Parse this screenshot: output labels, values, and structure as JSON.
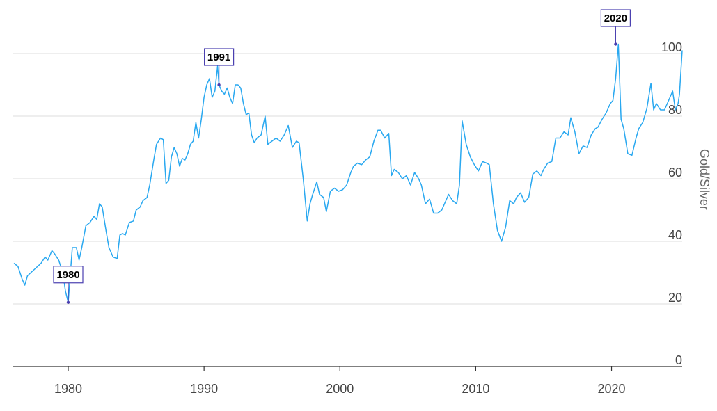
{
  "chart_data": {
    "type": "line",
    "title": "",
    "xlabel": "",
    "ylabel": "Gold/Silver",
    "xlim": [
      1975.9,
      2025.2
    ],
    "ylim": [
      0,
      100
    ],
    "x_ticks": [
      1980,
      1990,
      2000,
      2010,
      2020
    ],
    "x_tick_labels": [
      "1980",
      "1990",
      "2000",
      "2010",
      "2020"
    ],
    "y_ticks": [
      0,
      20,
      40,
      60,
      80,
      100
    ],
    "y_tick_labels": [
      "0",
      "20",
      "40",
      "60",
      "80",
      "100"
    ],
    "grid": "horizontal",
    "series": [
      {
        "name": "",
        "color": "#29a8f0",
        "points": [
          [
            1976.0,
            33
          ],
          [
            1976.3,
            32
          ],
          [
            1976.6,
            28
          ],
          [
            1976.8,
            26
          ],
          [
            1977.0,
            29
          ],
          [
            1977.5,
            31
          ],
          [
            1978.0,
            33
          ],
          [
            1978.3,
            35
          ],
          [
            1978.5,
            34
          ],
          [
            1978.8,
            37
          ],
          [
            1979.0,
            36
          ],
          [
            1979.3,
            34
          ],
          [
            1979.6,
            30
          ],
          [
            1979.8,
            24
          ],
          [
            1980.0,
            20.5
          ],
          [
            1980.3,
            38
          ],
          [
            1980.6,
            38
          ],
          [
            1980.8,
            34
          ],
          [
            1981.0,
            38
          ],
          [
            1981.3,
            45
          ],
          [
            1981.6,
            46
          ],
          [
            1981.9,
            48
          ],
          [
            1982.1,
            47
          ],
          [
            1982.3,
            52
          ],
          [
            1982.5,
            51
          ],
          [
            1982.8,
            43
          ],
          [
            1983.0,
            38
          ],
          [
            1983.3,
            35
          ],
          [
            1983.6,
            34.5
          ],
          [
            1983.8,
            42
          ],
          [
            1984.0,
            42.5
          ],
          [
            1984.2,
            42
          ],
          [
            1984.5,
            46
          ],
          [
            1984.8,
            46.5
          ],
          [
            1985.0,
            50
          ],
          [
            1985.3,
            51
          ],
          [
            1985.5,
            53
          ],
          [
            1985.8,
            54
          ],
          [
            1986.0,
            58
          ],
          [
            1986.3,
            66
          ],
          [
            1986.5,
            71
          ],
          [
            1986.8,
            73
          ],
          [
            1987.0,
            72.5
          ],
          [
            1987.2,
            58.5
          ],
          [
            1987.4,
            59.5
          ],
          [
            1987.6,
            67
          ],
          [
            1987.8,
            70
          ],
          [
            1988.0,
            68
          ],
          [
            1988.2,
            64
          ],
          [
            1988.4,
            66.5
          ],
          [
            1988.6,
            66
          ],
          [
            1988.8,
            68
          ],
          [
            1989.0,
            71
          ],
          [
            1989.2,
            72
          ],
          [
            1989.4,
            78
          ],
          [
            1989.6,
            73
          ],
          [
            1989.8,
            79
          ],
          [
            1990.0,
            86
          ],
          [
            1990.2,
            90
          ],
          [
            1990.4,
            92
          ],
          [
            1990.6,
            86
          ],
          [
            1990.8,
            88
          ],
          [
            1991.0,
            96
          ],
          [
            1991.1,
            90
          ],
          [
            1991.3,
            88
          ],
          [
            1991.5,
            87
          ],
          [
            1991.7,
            89
          ],
          [
            1991.9,
            86
          ],
          [
            1992.1,
            84
          ],
          [
            1992.3,
            90
          ],
          [
            1992.5,
            90
          ],
          [
            1992.7,
            89
          ],
          [
            1992.9,
            84
          ],
          [
            1993.1,
            80.5
          ],
          [
            1993.3,
            81
          ],
          [
            1993.5,
            74
          ],
          [
            1993.7,
            71.5
          ],
          [
            1993.9,
            73
          ],
          [
            1994.2,
            74
          ],
          [
            1994.5,
            80
          ],
          [
            1994.7,
            71
          ],
          [
            1995.0,
            72
          ],
          [
            1995.3,
            73
          ],
          [
            1995.6,
            72
          ],
          [
            1995.9,
            74
          ],
          [
            1996.2,
            77
          ],
          [
            1996.5,
            70
          ],
          [
            1996.8,
            72
          ],
          [
            1997.0,
            71.5
          ],
          [
            1997.3,
            60
          ],
          [
            1997.6,
            46.5
          ],
          [
            1997.8,
            52
          ],
          [
            1998.0,
            55
          ],
          [
            1998.3,
            59
          ],
          [
            1998.5,
            55
          ],
          [
            1998.8,
            54
          ],
          [
            1999.0,
            49.5
          ],
          [
            1999.3,
            56
          ],
          [
            1999.6,
            57
          ],
          [
            1999.9,
            56
          ],
          [
            2000.2,
            56.5
          ],
          [
            2000.5,
            58
          ],
          [
            2000.8,
            62
          ],
          [
            2001.0,
            64
          ],
          [
            2001.3,
            65
          ],
          [
            2001.6,
            64.5
          ],
          [
            2001.9,
            66
          ],
          [
            2002.2,
            67
          ],
          [
            2002.5,
            72
          ],
          [
            2002.8,
            75.5
          ],
          [
            2003.0,
            75.5
          ],
          [
            2003.3,
            73
          ],
          [
            2003.6,
            74.5
          ],
          [
            2003.8,
            61
          ],
          [
            2004.0,
            63
          ],
          [
            2004.3,
            62
          ],
          [
            2004.6,
            60
          ],
          [
            2004.9,
            61
          ],
          [
            2005.2,
            58
          ],
          [
            2005.5,
            62
          ],
          [
            2005.8,
            60
          ],
          [
            2006.0,
            58
          ],
          [
            2006.3,
            52
          ],
          [
            2006.6,
            53.5
          ],
          [
            2006.9,
            49
          ],
          [
            2007.2,
            49
          ],
          [
            2007.5,
            50
          ],
          [
            2007.8,
            53
          ],
          [
            2008.0,
            55
          ],
          [
            2008.3,
            53
          ],
          [
            2008.6,
            52
          ],
          [
            2008.8,
            58
          ],
          [
            2009.0,
            78.5
          ],
          [
            2009.3,
            71
          ],
          [
            2009.6,
            67
          ],
          [
            2009.9,
            64.5
          ],
          [
            2010.2,
            62.5
          ],
          [
            2010.5,
            65.5
          ],
          [
            2010.8,
            65
          ],
          [
            2011.0,
            64.5
          ],
          [
            2011.3,
            52
          ],
          [
            2011.6,
            43.5
          ],
          [
            2011.9,
            40
          ],
          [
            2012.2,
            44.5
          ],
          [
            2012.5,
            53
          ],
          [
            2012.8,
            52
          ],
          [
            2013.0,
            54
          ],
          [
            2013.3,
            55.5
          ],
          [
            2013.6,
            52.5
          ],
          [
            2013.9,
            54
          ],
          [
            2014.2,
            61.5
          ],
          [
            2014.5,
            62.5
          ],
          [
            2014.8,
            61
          ],
          [
            2015.0,
            63
          ],
          [
            2015.3,
            65
          ],
          [
            2015.6,
            65.5
          ],
          [
            2015.9,
            73
          ],
          [
            2016.2,
            73
          ],
          [
            2016.5,
            75
          ],
          [
            2016.8,
            74
          ],
          [
            2017.0,
            79.5
          ],
          [
            2017.3,
            75
          ],
          [
            2017.6,
            68
          ],
          [
            2017.9,
            70.5
          ],
          [
            2018.2,
            70
          ],
          [
            2018.5,
            74
          ],
          [
            2018.8,
            76
          ],
          [
            2019.0,
            76.5
          ],
          [
            2019.3,
            79
          ],
          [
            2019.6,
            81
          ],
          [
            2019.9,
            84
          ],
          [
            2020.1,
            85
          ],
          [
            2020.3,
            92
          ],
          [
            2020.5,
            103
          ],
          [
            2020.7,
            79
          ],
          [
            2020.9,
            76
          ],
          [
            2021.2,
            68
          ],
          [
            2021.5,
            67.5
          ],
          [
            2021.8,
            73
          ],
          [
            2022.0,
            76
          ],
          [
            2022.3,
            78
          ],
          [
            2022.6,
            82.5
          ],
          [
            2022.9,
            90.5
          ],
          [
            2023.1,
            82
          ],
          [
            2023.3,
            84
          ],
          [
            2023.6,
            82
          ],
          [
            2023.9,
            82
          ],
          [
            2024.2,
            85
          ],
          [
            2024.5,
            88
          ],
          [
            2024.7,
            82
          ],
          [
            2024.9,
            84
          ],
          [
            2025.0,
            87
          ],
          [
            2025.2,
            101
          ]
        ]
      }
    ],
    "annotations": [
      {
        "label": "1980",
        "x": 1980.0,
        "y": 20.5
      },
      {
        "label": "1991",
        "x": 1991.1,
        "y": 90
      },
      {
        "label": "2020",
        "x": 2020.3,
        "y": 103
      }
    ]
  }
}
